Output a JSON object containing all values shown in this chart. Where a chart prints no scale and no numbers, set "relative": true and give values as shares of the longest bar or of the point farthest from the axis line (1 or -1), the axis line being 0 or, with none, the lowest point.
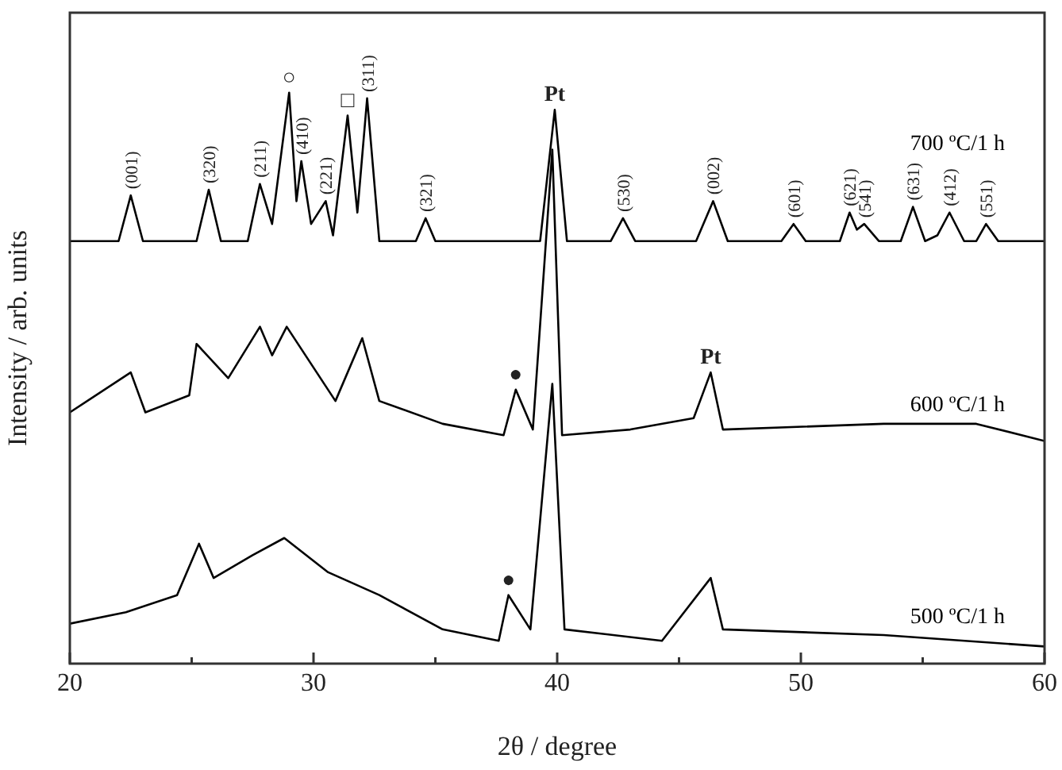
{
  "chart_data": {
    "type": "line",
    "relative": true,
    "xlabel": "2θ / degree",
    "ylabel": "Intensity / arb. units",
    "xlim": [
      20,
      60
    ],
    "xticks": [
      20,
      {
        "value": 25,
        "label": null
      },
      30,
      {
        "value": 35,
        "label": null
      },
      40,
      {
        "value": 45,
        "label": null
      },
      50,
      {
        "value": 55,
        "label": null
      },
      60
    ],
    "series": [
      {
        "name": "700 ºC/1 h",
        "color": "#000000",
        "x": [
          20,
          22,
          22.5,
          23,
          25.2,
          25.7,
          26.2,
          27.3,
          27.8,
          28.3,
          29,
          29.3,
          29.5,
          29.9,
          30.5,
          30.8,
          31.4,
          31.8,
          32.2,
          32.7,
          34.2,
          34.6,
          35,
          39.3,
          39.9,
          40.4,
          42.2,
          42.7,
          43.2,
          45.7,
          46.4,
          47,
          49.2,
          49.7,
          50.2,
          51.6,
          52,
          52.3,
          52.6,
          53.2,
          54.1,
          54.6,
          55.1,
          55.6,
          56.1,
          56.7,
          57.2,
          57.6,
          58.1,
          60
        ],
        "values": [
          0.74,
          0.74,
          0.82,
          0.74,
          0.74,
          0.83,
          0.74,
          0.74,
          0.84,
          0.77,
          1,
          0.81,
          0.88,
          0.77,
          0.81,
          0.75,
          0.96,
          0.79,
          0.99,
          0.74,
          0.74,
          0.78,
          0.74,
          0.74,
          0.97,
          0.74,
          0.74,
          0.78,
          0.74,
          0.74,
          0.81,
          0.74,
          0.74,
          0.77,
          0.74,
          0.74,
          0.79,
          0.76,
          0.77,
          0.74,
          0.74,
          0.8,
          0.74,
          0.75,
          0.79,
          0.74,
          0.74,
          0.77,
          0.74,
          0.74
        ]
      },
      {
        "name": "600 ºC/1 h",
        "color": "#000000",
        "x": [
          20,
          22.5,
          23.1,
          24.9,
          25.2,
          26.5,
          27.8,
          28.3,
          28.9,
          30.9,
          32,
          32.7,
          35.3,
          37.8,
          38.3,
          39,
          39.8,
          40.2,
          43,
          45.6,
          46.3,
          46.8,
          53.4,
          57.2,
          60
        ],
        "values": [
          0.44,
          0.51,
          0.44,
          0.47,
          0.56,
          0.5,
          0.59,
          0.54,
          0.59,
          0.46,
          0.57,
          0.46,
          0.42,
          0.4,
          0.48,
          0.41,
          0.9,
          0.4,
          0.41,
          0.43,
          0.51,
          0.41,
          0.42,
          0.42,
          0.39
        ]
      },
      {
        "name": "500 ºC/1 h",
        "color": "#000000",
        "x": [
          20,
          22.3,
          24.4,
          25.3,
          25.9,
          27.5,
          28.8,
          30.6,
          32.7,
          35.3,
          37.6,
          38,
          38.9,
          39.8,
          40.3,
          44.3,
          46.3,
          46.8,
          53.4,
          60
        ],
        "values": [
          0.07,
          0.09,
          0.12,
          0.21,
          0.15,
          0.19,
          0.22,
          0.16,
          0.12,
          0.06,
          0.04,
          0.12,
          0.06,
          0.49,
          0.06,
          0.04,
          0.15,
          0.06,
          0.05,
          0.03
        ]
      }
    ],
    "annotations": [
      {
        "text": "(001)",
        "x": 22.5,
        "y": 0.82
      },
      {
        "text": "(320)",
        "x": 25.7,
        "y": 0.83
      },
      {
        "text": "(211)",
        "x": 27.8,
        "y": 0.84
      },
      {
        "text": "○",
        "x": 29,
        "y": 1
      },
      {
        "text": "(410)",
        "x": 29.5,
        "y": 0.88
      },
      {
        "text": "(221)",
        "x": 30.5,
        "y": 0.81
      },
      {
        "text": "□",
        "x": 31.4,
        "y": 0.96
      },
      {
        "text": "(311)",
        "x": 32.2,
        "y": 0.99
      },
      {
        "text": "(321)",
        "x": 34.6,
        "y": 0.78
      },
      {
        "text": "Pt",
        "x": 39.9,
        "y": 0.97
      },
      {
        "text": "(530)",
        "x": 42.7,
        "y": 0.78
      },
      {
        "text": "(002)",
        "x": 46.4,
        "y": 0.81
      },
      {
        "text": "(601)",
        "x": 49.7,
        "y": 0.77
      },
      {
        "text": "(621)",
        "x": 52,
        "y": 0.79
      },
      {
        "text": "(541)",
        "x": 52.6,
        "y": 0.77
      },
      {
        "text": "(631)",
        "x": 54.6,
        "y": 0.8
      },
      {
        "text": "(412)",
        "x": 56.1,
        "y": 0.79
      },
      {
        "text": "(551)",
        "x": 57.6,
        "y": 0.77
      },
      {
        "text": "●",
        "x": 38.3,
        "y": 0.48
      },
      {
        "text": "Pt",
        "x": 46.3,
        "y": 0.51
      },
      {
        "text": "●",
        "x": 38,
        "y": 0.12
      }
    ]
  }
}
